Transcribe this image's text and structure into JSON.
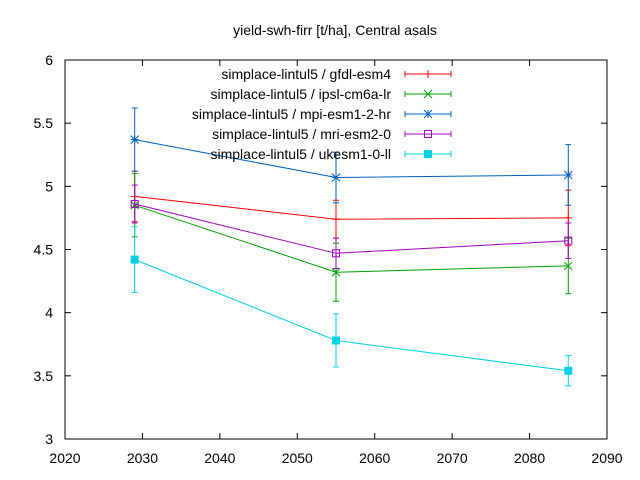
{
  "chart_data": {
    "type": "line",
    "title": "yield-swh-firr [t/ha], Central asals",
    "xlabel": "",
    "ylabel": "",
    "xlim": [
      2020,
      2090
    ],
    "ylim": [
      3,
      6
    ],
    "xticks": [
      "2020",
      "2030",
      "2040",
      "2050",
      "2060",
      "2070",
      "2080",
      "2090"
    ],
    "yticks": [
      "3",
      "3.5",
      "4",
      "4.5",
      "5",
      "5.5",
      "6"
    ],
    "grid": false,
    "legend_position": "top-right",
    "x": [
      2029,
      2055,
      2085
    ],
    "series": [
      {
        "name": "simplace-lintul5 / gfdl-esm4",
        "color": "#ff0000",
        "marker": "plus",
        "values": [
          4.92,
          4.74,
          4.75
        ],
        "err": [
          0.2,
          0.15,
          0.22
        ]
      },
      {
        "name": "simplace-lintul5 / ipsl-cm6a-lr",
        "color": "#00a000",
        "marker": "cross",
        "values": [
          4.85,
          4.32,
          4.37
        ],
        "err": [
          0.25,
          0.23,
          0.22
        ]
      },
      {
        "name": "simplace-lintul5 / mpi-esm1-2-hr",
        "color": "#0060c0",
        "marker": "star",
        "values": [
          5.37,
          5.07,
          5.09
        ],
        "err": [
          0.25,
          0.2,
          0.24
        ]
      },
      {
        "name": "simplace-lintul5 / mri-esm2-0",
        "color": "#a000c0",
        "marker": "square",
        "values": [
          4.86,
          4.47,
          4.57
        ],
        "err": [
          0.15,
          0.12,
          0.14
        ]
      },
      {
        "name": "simplace-lintul5 / ukesm1-0-ll",
        "color": "#00d0e0",
        "marker": "filled-square",
        "values": [
          4.42,
          3.78,
          3.54
        ],
        "err": [
          0.26,
          0.21,
          0.12
        ]
      }
    ]
  }
}
